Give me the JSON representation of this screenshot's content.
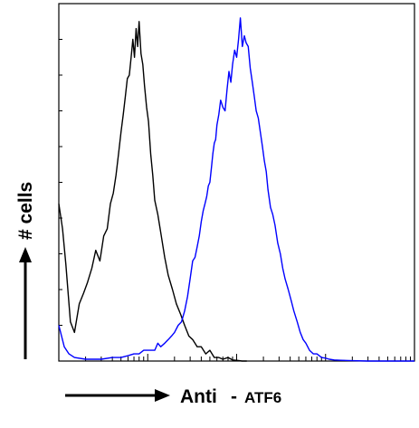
{
  "chart_data": {
    "type": "line",
    "title": "",
    "xlabel_main": "Anti",
    "xlabel_sep": "-",
    "xlabel_target": "ATF6",
    "ylabel": "# cells",
    "x_scale": "log",
    "xlim": [
      1,
      10000
    ],
    "ylim": [
      0,
      100
    ],
    "grid": false,
    "series": [
      {
        "color": "#000000",
        "x": [
          1,
          1.1,
          1.2,
          1.35,
          1.5,
          1.7,
          1.9,
          2.1,
          2.35,
          2.6,
          2.9,
          3.2,
          3.5,
          3.8,
          4.1,
          4.4,
          4.7,
          5.0,
          5.3,
          5.6,
          5.9,
          6.2,
          6.5,
          6.8,
          7.1,
          7.4,
          7.7,
          8.0,
          8.4,
          8.8,
          9.2,
          9.7,
          10.2,
          10.8,
          11.4,
          12,
          13,
          14,
          15.5,
          17,
          19,
          21,
          23.5,
          26,
          29,
          32,
          36,
          40,
          45,
          50,
          56,
          63,
          70,
          80,
          90,
          100,
          115,
          130
        ],
        "values": [
          44,
          37,
          27,
          11,
          8,
          16,
          19,
          22,
          26,
          31,
          28,
          35,
          37,
          44,
          47,
          52,
          58,
          64,
          69,
          74,
          79,
          80,
          85,
          90,
          85,
          93,
          88,
          95,
          86,
          83,
          77,
          71,
          67,
          58,
          52,
          45,
          41,
          36,
          29,
          24,
          20,
          16,
          13,
          10,
          7,
          6,
          4,
          4,
          2,
          3,
          1,
          1,
          0.5,
          1,
          0.3,
          0.2,
          0,
          0
        ]
      },
      {
        "color": "#0000ff",
        "x": [
          1,
          1.15,
          1.3,
          1.5,
          2,
          3,
          4,
          5,
          6,
          7,
          8,
          9,
          10,
          11,
          12,
          13,
          14,
          15.5,
          17,
          18.5,
          20,
          22,
          24,
          26,
          28,
          30,
          32,
          34,
          36,
          38,
          40,
          42,
          44,
          46,
          48,
          50,
          52,
          54,
          56,
          58,
          60,
          63,
          66,
          70,
          74,
          78,
          82,
          86,
          90,
          95,
          100,
          105,
          110,
          116,
          122,
          128,
          135,
          142,
          150,
          158,
          166,
          175,
          185,
          195,
          205,
          215,
          225,
          240,
          255,
          270,
          290,
          310,
          330,
          350,
          380,
          410,
          440,
          480,
          520,
          560,
          600,
          660,
          730,
          800,
          900,
          1000,
          1100,
          1250,
          1500,
          2000,
          3000,
          5000,
          10000
        ],
        "values": [
          10,
          4,
          2,
          1,
          0.5,
          0.5,
          1,
          1,
          1.5,
          2,
          2,
          3,
          3,
          3,
          3,
          5,
          4,
          5,
          6,
          7,
          8,
          10,
          11,
          14,
          18,
          23,
          28,
          29,
          32,
          35,
          39,
          42,
          44,
          46,
          49,
          50,
          54,
          58,
          61,
          62,
          66,
          69,
          73,
          71,
          70,
          76,
          81,
          78,
          83,
          87,
          85,
          90,
          96,
          88,
          91,
          89,
          88,
          82,
          78,
          74,
          70,
          68,
          64,
          60,
          56,
          53,
          48,
          43,
          41,
          38,
          33,
          30,
          26,
          23,
          20,
          17,
          14,
          11,
          8,
          6,
          5,
          3,
          2,
          2,
          1,
          0.8,
          0.5,
          0.3,
          0.2,
          0.1,
          0,
          0,
          0
        ]
      }
    ]
  }
}
